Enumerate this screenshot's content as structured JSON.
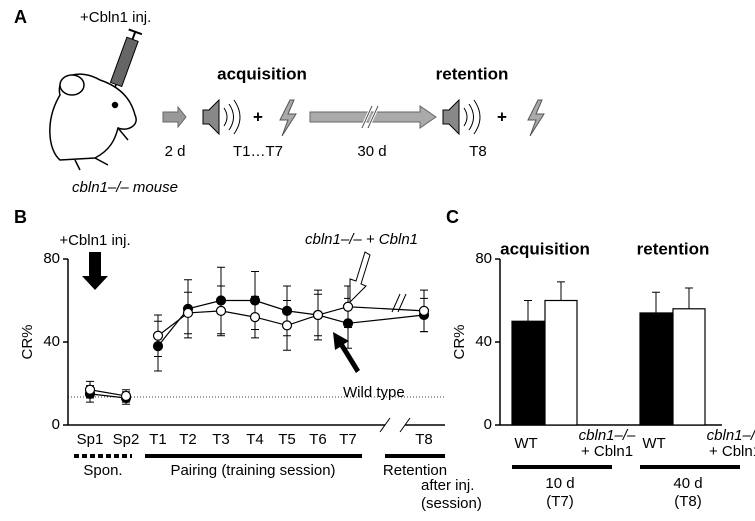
{
  "panel_a": {
    "label": "A",
    "injection": "+Cbln1 inj.",
    "mouse": "cbln1–/– mouse",
    "acquisition": "acquisition",
    "retention": "retention",
    "delay1": "2 d",
    "sessions1": "T1…T7",
    "delay2": "30 d",
    "sessions2": "T8",
    "plus": "+"
  },
  "chart_data": [
    {
      "type": "line",
      "panel_label": "B",
      "ylabel": "CR%",
      "categories": [
        "Sp1",
        "Sp2",
        "T1",
        "T2",
        "T3",
        "T4",
        "T5",
        "T6",
        "T7",
        "T8"
      ],
      "ylim": [
        0,
        80
      ],
      "yticks": [
        0,
        40,
        80
      ],
      "reference_line": 13.5,
      "injection": "+Cbln1 inj.",
      "groups": [
        "Spon.",
        "Pairing (training session)",
        "Retention"
      ],
      "series": [
        {
          "name": "Wild type",
          "color": "#000000",
          "values": [
            15,
            13,
            38,
            56,
            60,
            60,
            55,
            53,
            49,
            53
          ],
          "errors": [
            4,
            3,
            12,
            14,
            16,
            14,
            12,
            12,
            12,
            8
          ]
        },
        {
          "name": "cbln1–/– + Cbln1",
          "color": "#ffffff",
          "values": [
            17,
            14,
            43,
            54,
            55,
            52,
            48,
            53,
            57,
            55
          ],
          "errors": [
            4,
            3,
            10,
            10,
            12,
            10,
            12,
            10,
            10,
            10
          ]
        }
      ]
    },
    {
      "type": "bar",
      "panel_label": "C",
      "ylabel": "CR%",
      "categories": [
        "acquisition",
        "retention"
      ],
      "ylim": [
        0,
        80
      ],
      "yticks": [
        0,
        40,
        80
      ],
      "after_label": [
        "after inj.",
        "(session)"
      ],
      "session_labels": [
        [
          "10 d",
          "(T7)"
        ],
        [
          "40 d",
          "(T8)"
        ]
      ],
      "series": [
        {
          "name_lines": [
            "WT"
          ],
          "color": "#000000",
          "values": [
            50,
            54
          ],
          "errors": [
            10,
            10
          ]
        },
        {
          "name_lines": [
            "cbln1–/–",
            "+ Cbln1"
          ],
          "color": "#ffffff",
          "values": [
            60,
            56
          ],
          "errors": [
            9,
            10
          ]
        }
      ]
    }
  ]
}
